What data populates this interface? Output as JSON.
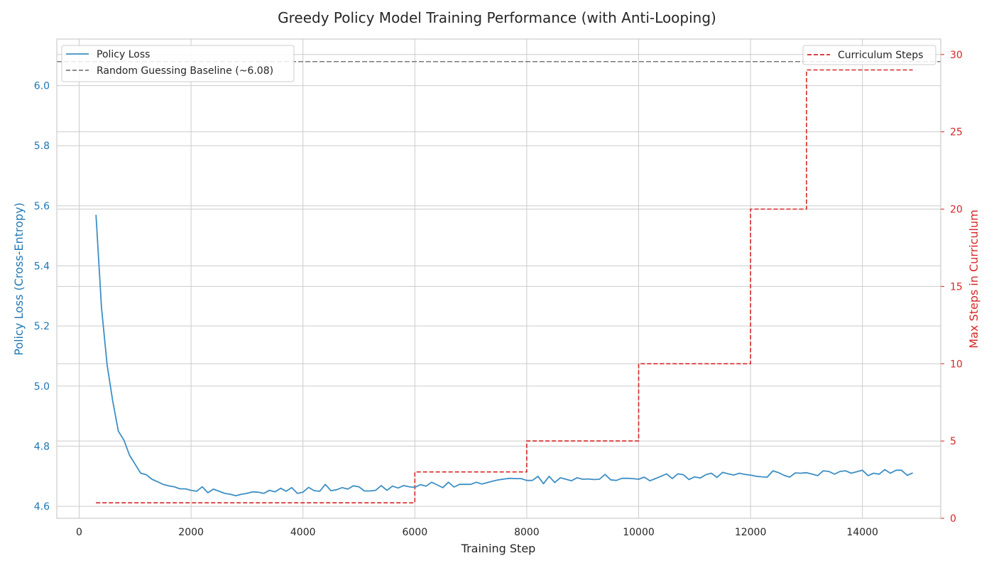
{
  "chart_data": {
    "type": "line",
    "title": "Greedy Policy Model Training Performance (with Anti-Looping)",
    "xlabel": "Training Step",
    "ylabel_left": "Policy Loss (Cross-Entropy)",
    "ylabel_right": "Max Steps in Curriculum",
    "xlim": [
      -400,
      15400
    ],
    "ylim_left": [
      4.56,
      6.155
    ],
    "ylim_right": [
      0,
      31
    ],
    "x_ticks": [
      0,
      2000,
      4000,
      6000,
      8000,
      10000,
      12000,
      14000
    ],
    "y_ticks_left": [
      4.6,
      4.8,
      5.0,
      5.2,
      5.4,
      5.6,
      5.8,
      6.0
    ],
    "y_ticks_left_labels": [
      "4.6",
      "4.8",
      "5.0",
      "5.2",
      "5.4",
      "5.6",
      "5.8",
      "6.0"
    ],
    "y_ticks_right": [
      0,
      5,
      10,
      15,
      20,
      25,
      30
    ],
    "grid": true,
    "colors": {
      "loss": "#3d8fc5",
      "baseline": "#7a7a7a",
      "curriculum": "#d62728",
      "left_axis": "#1f77b4",
      "right_axis": "#d62728",
      "grid": "#cccccc",
      "text": "#262626"
    },
    "loss_series": {
      "name": "Policy Loss",
      "x": [
        300,
        400,
        500,
        600,
        700,
        800,
        900,
        1000,
        1100,
        1200,
        1300,
        1400,
        1500,
        1600,
        1700,
        1800,
        1900,
        2000,
        2100,
        2200,
        2300,
        2400,
        2500,
        2600,
        2700,
        2800,
        2900,
        3000,
        3100,
        3200,
        3300,
        3400,
        3500,
        3600,
        3700,
        3800,
        3900,
        4000,
        4100,
        4200,
        4300,
        4400,
        4500,
        4600,
        4700,
        4800,
        4900,
        5000,
        5100,
        5200,
        5300,
        5400,
        5500,
        5600,
        5700,
        5800,
        5900,
        6000,
        6100,
        6200,
        6300,
        6400,
        6500,
        6600,
        6700,
        6800,
        6900,
        7000,
        7100,
        7200,
        7300,
        7400,
        7500,
        7600,
        7700,
        7800,
        7900,
        8000,
        8100,
        8200,
        8300,
        8400,
        8500,
        8600,
        8700,
        8800,
        8900,
        9000,
        9100,
        9200,
        9300,
        9400,
        9500,
        9600,
        9700,
        9800,
        9900,
        10000,
        10100,
        10200,
        10300,
        10400,
        10500,
        10600,
        10700,
        10800,
        10900,
        11000,
        11100,
        11200,
        11300,
        11400,
        11500,
        11600,
        11700,
        11800,
        11900,
        12000,
        12100,
        12200,
        12300,
        12400,
        12500,
        12600,
        12700,
        12800,
        12900,
        13000,
        13100,
        13200,
        13300,
        13400,
        13500,
        13600,
        13700,
        13800,
        13900,
        14000,
        14100,
        14200,
        14300,
        14400,
        14500,
        14600,
        14700,
        14800,
        14900
      ],
      "values": [
        5.57,
        5.26,
        5.07,
        4.95,
        4.85,
        4.82,
        4.77,
        4.74,
        4.71,
        4.705,
        4.69,
        4.682,
        4.673,
        4.668,
        4.665,
        4.658,
        4.658,
        4.653,
        4.65,
        4.665,
        4.645,
        4.657,
        4.65,
        4.643,
        4.64,
        4.635,
        4.64,
        4.643,
        4.648,
        4.647,
        4.643,
        4.653,
        4.648,
        4.66,
        4.65,
        4.662,
        4.643,
        4.647,
        4.663,
        4.652,
        4.65,
        4.673,
        4.652,
        4.655,
        4.662,
        4.657,
        4.668,
        4.665,
        4.651,
        4.651,
        4.653,
        4.669,
        4.653,
        4.667,
        4.661,
        4.669,
        4.665,
        4.663,
        4.672,
        4.667,
        4.68,
        4.671,
        4.662,
        4.68,
        4.664,
        4.673,
        4.673,
        4.673,
        4.68,
        4.674,
        4.679,
        4.684,
        4.688,
        4.691,
        4.693,
        4.692,
        4.692,
        4.686,
        4.686,
        4.7,
        4.675,
        4.7,
        4.679,
        4.695,
        4.69,
        4.685,
        4.695,
        4.69,
        4.691,
        4.689,
        4.69,
        4.706,
        4.688,
        4.686,
        4.693,
        4.693,
        4.692,
        4.69,
        4.697,
        4.685,
        4.692,
        4.7,
        4.708,
        4.692,
        4.708,
        4.705,
        4.689,
        4.698,
        4.694,
        4.705,
        4.71,
        4.696,
        4.713,
        4.708,
        4.704,
        4.71,
        4.706,
        4.704,
        4.7,
        4.698,
        4.697,
        4.718,
        4.712,
        4.703,
        4.697,
        4.711,
        4.71,
        4.712,
        4.707,
        4.702,
        4.718,
        4.716,
        4.707,
        4.716,
        4.718,
        4.71,
        4.715,
        4.72,
        4.702,
        4.71,
        4.707,
        4.722,
        4.71,
        4.72,
        4.72,
        4.703,
        4.711
      ]
    },
    "baseline": {
      "name": "Random Guessing Baseline (~6.08)",
      "value": 6.08
    },
    "curriculum_series": {
      "name": "Curriculum Steps",
      "x": [
        300,
        6000,
        6000,
        8000,
        8000,
        10000,
        10000,
        12000,
        12000,
        13000,
        13000,
        14900
      ],
      "values": [
        1,
        1,
        3,
        3,
        5,
        5,
        10,
        10,
        20,
        20,
        29,
        29
      ]
    }
  }
}
